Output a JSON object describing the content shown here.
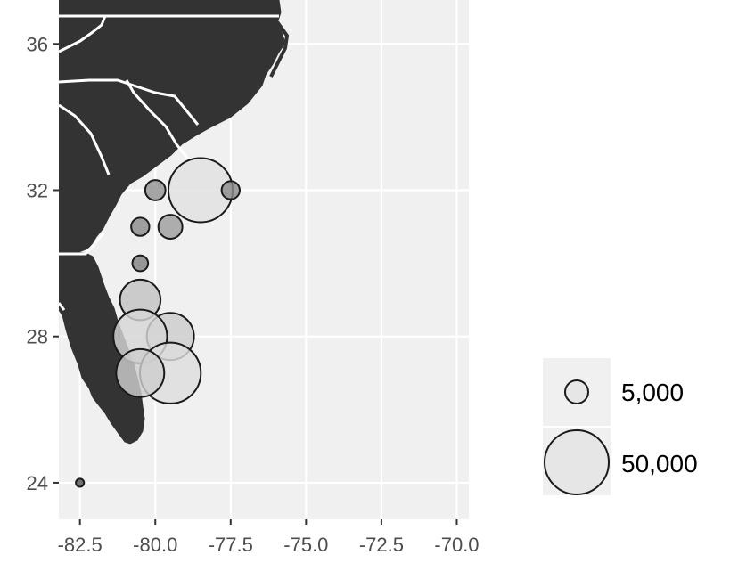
{
  "map": {
    "x_ticks": [
      "-82.5",
      "-80.0",
      "-77.5",
      "-75.0",
      "-72.5",
      "-70.0"
    ],
    "y_ticks": [
      "24",
      "28",
      "32",
      "36"
    ],
    "xlim": [
      -83.2,
      -69.6
    ],
    "ylim": [
      23.0,
      37.2
    ],
    "colors": {
      "panel": "#f0f0f0",
      "grid": "#ffffff",
      "land": "#333333",
      "state_lines": "#ffffff",
      "bubble_stroke": "#1a1a1a",
      "tick": "#333333"
    }
  },
  "chart_data": {
    "type": "scatter",
    "title": "",
    "xlabel": "",
    "ylabel": "",
    "grid": true,
    "legend_placement": "right",
    "points": [
      {
        "lon": -82.5,
        "lat": 24.0,
        "value": 800
      },
      {
        "lon": -80.0,
        "lat": 32.0,
        "value": 5000
      },
      {
        "lon": -78.5,
        "lat": 32.0,
        "value": 50000
      },
      {
        "lon": -77.5,
        "lat": 32.0,
        "value": 4000
      },
      {
        "lon": -80.5,
        "lat": 31.0,
        "value": 4000
      },
      {
        "lon": -79.5,
        "lat": 31.0,
        "value": 7000
      },
      {
        "lon": -80.5,
        "lat": 30.0,
        "value": 3000
      },
      {
        "lon": -80.5,
        "lat": 29.0,
        "value": 20000
      },
      {
        "lon": -79.5,
        "lat": 28.0,
        "value": 27000
      },
      {
        "lon": -80.5,
        "lat": 28.0,
        "value": 35000
      },
      {
        "lon": -79.5,
        "lat": 27.0,
        "value": 45000
      },
      {
        "lon": -80.5,
        "lat": 27.0,
        "value": 28000
      }
    ],
    "legend": {
      "entries": [
        {
          "label": "5,000",
          "value": 5000
        },
        {
          "label": "50,000",
          "value": 50000
        }
      ]
    }
  }
}
